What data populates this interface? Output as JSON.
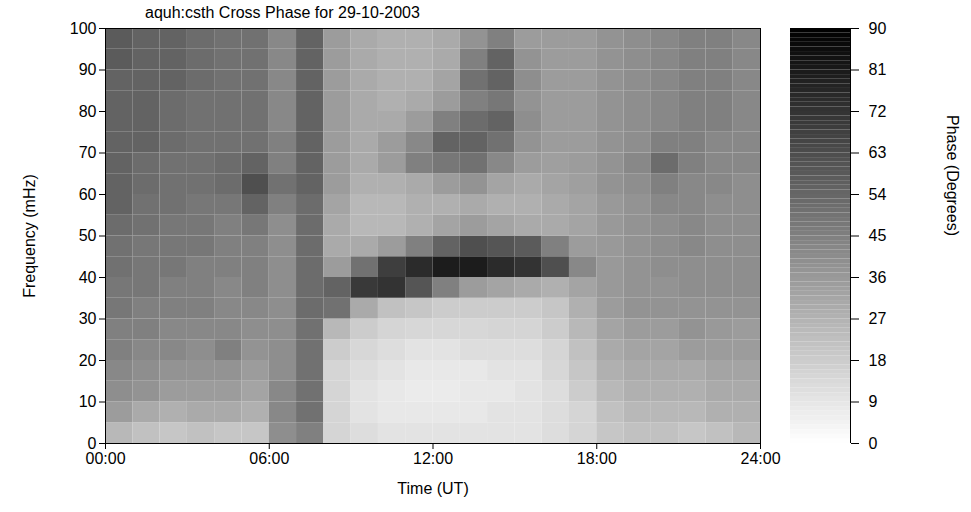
{
  "chart_data": {
    "type": "heatmap",
    "title": "aquh:csth Cross Phase for 29-10-2003",
    "x_label": "Time (UT)",
    "y_label": "Frequency (mHz)",
    "colorbar_label": "Phase (Degrees)",
    "xlim": [
      0,
      24
    ],
    "xticks": [
      {
        "value": 0,
        "label": "00:00"
      },
      {
        "value": 6,
        "label": "06:00"
      },
      {
        "value": 12,
        "label": "12:00"
      },
      {
        "value": 18,
        "label": "18:00"
      },
      {
        "value": 24,
        "label": "24:00"
      }
    ],
    "ylim": [
      0,
      100
    ],
    "yticks": [
      0,
      10,
      20,
      30,
      40,
      50,
      60,
      70,
      80,
      90,
      100
    ],
    "x_bins": [
      0,
      1,
      2,
      3,
      4,
      5,
      6,
      7,
      8,
      9,
      10,
      11,
      12,
      13,
      14,
      15,
      16,
      17,
      18,
      19,
      20,
      21,
      22,
      23,
      24
    ],
    "y_bins": [
      0,
      5,
      10,
      15,
      20,
      25,
      30,
      35,
      40,
      45,
      50,
      55,
      60,
      65,
      70,
      75,
      80,
      85,
      90,
      95,
      100
    ],
    "cells": [
      [
        25,
        22,
        20,
        22,
        20,
        20,
        40,
        45,
        15,
        12,
        10,
        10,
        10,
        10,
        10,
        10,
        12,
        15,
        20,
        22,
        22,
        20,
        22,
        25
      ],
      [
        35,
        30,
        28,
        30,
        30,
        28,
        42,
        50,
        15,
        10,
        8,
        8,
        8,
        8,
        10,
        10,
        12,
        15,
        22,
        25,
        25,
        25,
        28,
        28
      ],
      [
        40,
        38,
        35,
        35,
        35,
        32,
        42,
        50,
        15,
        10,
        8,
        7,
        7,
        8,
        8,
        10,
        12,
        18,
        25,
        28,
        28,
        28,
        30,
        30
      ],
      [
        42,
        40,
        38,
        38,
        38,
        35,
        40,
        50,
        15,
        12,
        10,
        8,
        8,
        8,
        10,
        10,
        14,
        20,
        28,
        30,
        30,
        30,
        32,
        32
      ],
      [
        45,
        42,
        42,
        40,
        45,
        38,
        40,
        50,
        18,
        14,
        12,
        10,
        10,
        12,
        12,
        12,
        15,
        22,
        30,
        32,
        32,
        35,
        35,
        35
      ],
      [
        45,
        45,
        42,
        42,
        42,
        40,
        40,
        50,
        25,
        18,
        15,
        14,
        14,
        14,
        15,
        15,
        18,
        25,
        32,
        35,
        35,
        38,
        36,
        35
      ],
      [
        48,
        45,
        45,
        45,
        42,
        42,
        40,
        52,
        50,
        30,
        22,
        20,
        18,
        18,
        18,
        18,
        20,
        28,
        35,
        38,
        38,
        38,
        38,
        38
      ],
      [
        48,
        48,
        45,
        45,
        42,
        45,
        40,
        52,
        55,
        70,
        72,
        60,
        45,
        35,
        32,
        30,
        28,
        32,
        36,
        38,
        38,
        40,
        40,
        40
      ],
      [
        50,
        48,
        48,
        45,
        45,
        45,
        40,
        52,
        35,
        50,
        68,
        75,
        80,
        80,
        75,
        72,
        62,
        42,
        36,
        38,
        40,
        40,
        40,
        40
      ],
      [
        50,
        48,
        48,
        48,
        45,
        45,
        40,
        52,
        30,
        30,
        35,
        45,
        55,
        62,
        60,
        58,
        45,
        35,
        36,
        38,
        40,
        42,
        40,
        40
      ],
      [
        52,
        50,
        48,
        48,
        45,
        48,
        40,
        52,
        30,
        25,
        25,
        28,
        32,
        35,
        32,
        30,
        30,
        32,
        36,
        38,
        40,
        42,
        40,
        40
      ],
      [
        55,
        50,
        50,
        48,
        48,
        55,
        45,
        52,
        32,
        25,
        25,
        28,
        28,
        30,
        28,
        28,
        30,
        32,
        36,
        38,
        42,
        42,
        40,
        40
      ],
      [
        55,
        52,
        50,
        50,
        52,
        62,
        50,
        55,
        35,
        28,
        28,
        30,
        35,
        38,
        32,
        30,
        32,
        34,
        38,
        40,
        45,
        42,
        42,
        40
      ],
      [
        55,
        52,
        50,
        50,
        52,
        55,
        45,
        55,
        35,
        30,
        35,
        45,
        48,
        50,
        42,
        35,
        34,
        35,
        38,
        42,
        52,
        45,
        42,
        42
      ],
      [
        55,
        55,
        52,
        50,
        50,
        50,
        45,
        55,
        35,
        30,
        35,
        42,
        55,
        55,
        50,
        38,
        35,
        35,
        38,
        40,
        45,
        45,
        42,
        42
      ],
      [
        55,
        55,
        52,
        50,
        50,
        50,
        42,
        55,
        35,
        30,
        30,
        35,
        45,
        52,
        55,
        40,
        35,
        35,
        38,
        40,
        42,
        45,
        45,
        42
      ],
      [
        55,
        55,
        52,
        50,
        50,
        50,
        42,
        55,
        35,
        30,
        28,
        30,
        35,
        45,
        48,
        38,
        35,
        35,
        38,
        40,
        42,
        45,
        45,
        42
      ],
      [
        55,
        55,
        55,
        52,
        50,
        50,
        42,
        55,
        35,
        30,
        28,
        28,
        32,
        50,
        55,
        40,
        35,
        35,
        38,
        40,
        42,
        45,
        45,
        42
      ],
      [
        58,
        55,
        55,
        52,
        50,
        50,
        42,
        55,
        35,
        30,
        28,
        28,
        30,
        45,
        55,
        38,
        35,
        35,
        38,
        40,
        42,
        45,
        45,
        42
      ],
      [
        58,
        55,
        55,
        52,
        50,
        50,
        42,
        55,
        35,
        30,
        28,
        28,
        30,
        38,
        45,
        35,
        35,
        35,
        38,
        40,
        42,
        45,
        45,
        42
      ]
    ],
    "colorbar_range": [
      0,
      90
    ],
    "colorbar_ticks": [
      0,
      9,
      18,
      27,
      36,
      45,
      54,
      63,
      72,
      81,
      90
    ],
    "colors": [
      "#ffffff",
      "#000000"
    ]
  }
}
